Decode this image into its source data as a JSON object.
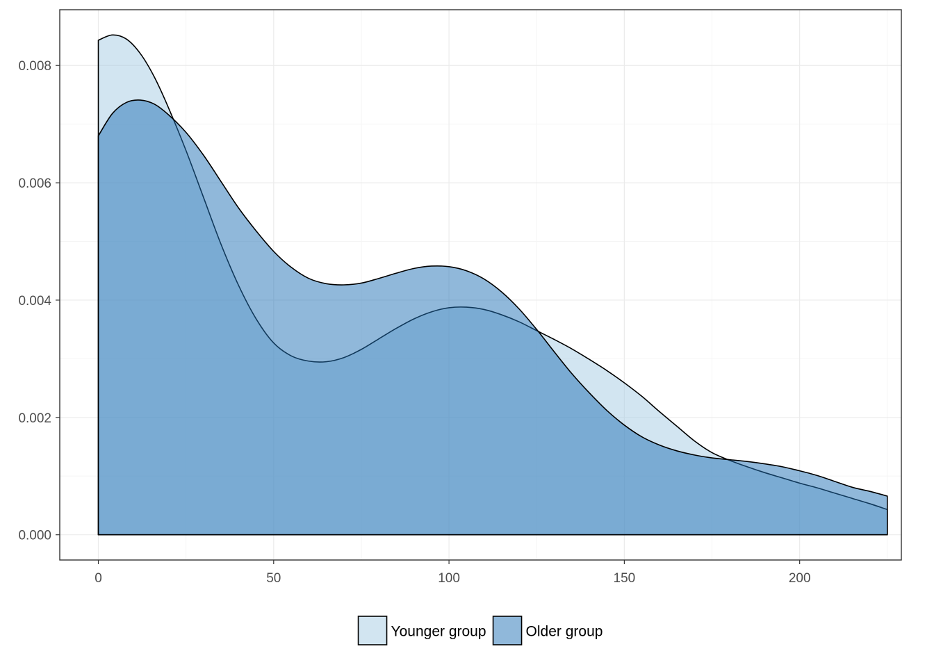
{
  "chart_data": {
    "type": "area",
    "subtype": "density",
    "title": "",
    "xlabel": "",
    "ylabel": "",
    "xlim": [
      -11,
      229
    ],
    "ylim": [
      -0.00043,
      0.00895
    ],
    "x_ticks": [
      0,
      50,
      100,
      150,
      200
    ],
    "x_tick_labels": [
      "0",
      "50",
      "100",
      "150",
      "200"
    ],
    "y_ticks": [
      0,
      0.002,
      0.004,
      0.006,
      0.008
    ],
    "y_tick_labels": [
      "0.000",
      "0.002",
      "0.004",
      "0.006",
      "0.008"
    ],
    "grid": true,
    "legend_position": "bottom",
    "series": [
      {
        "name": "Younger group",
        "fill": "#a6cce3",
        "fill_opacity": 0.5,
        "x": [
          0,
          4,
          8,
          12,
          16,
          20,
          25,
          30,
          35,
          40,
          45,
          50,
          55,
          60,
          65,
          70,
          75,
          80,
          85,
          90,
          95,
          100,
          105,
          110,
          115,
          120,
          125,
          130,
          135,
          140,
          145,
          150,
          155,
          160,
          165,
          170,
          175,
          180,
          185,
          190,
          195,
          200,
          205,
          210,
          215,
          220,
          225
        ],
        "y": [
          0.00843,
          0.00852,
          0.00845,
          0.0082,
          0.0078,
          0.00728,
          0.00655,
          0.00575,
          0.00495,
          0.00425,
          0.00368,
          0.00327,
          0.00305,
          0.00296,
          0.00295,
          0.00302,
          0.00316,
          0.00334,
          0.00352,
          0.00368,
          0.0038,
          0.00387,
          0.00388,
          0.00384,
          0.00375,
          0.00363,
          0.00348,
          0.00333,
          0.00317,
          0.00299,
          0.0028,
          0.00259,
          0.00236,
          0.0021,
          0.00185,
          0.0016,
          0.0014,
          0.00127,
          0.00116,
          0.00106,
          0.00097,
          0.00088,
          0.0008,
          0.00071,
          0.00062,
          0.00053,
          0.00043
        ]
      },
      {
        "name": "Older group",
        "fill": "#2171b5",
        "fill_opacity": 0.5,
        "x": [
          0,
          4,
          8,
          12,
          16,
          20,
          25,
          30,
          35,
          40,
          45,
          50,
          55,
          60,
          65,
          70,
          75,
          80,
          85,
          90,
          95,
          100,
          105,
          110,
          115,
          120,
          125,
          130,
          135,
          140,
          145,
          150,
          155,
          160,
          165,
          170,
          175,
          180,
          185,
          190,
          195,
          200,
          205,
          210,
          215,
          220,
          225
        ],
        "y": [
          0.0068,
          0.00718,
          0.00737,
          0.00741,
          0.00734,
          0.00716,
          0.00686,
          0.00647,
          0.00602,
          0.00557,
          0.00518,
          0.00483,
          0.00456,
          0.00437,
          0.00428,
          0.00426,
          0.00429,
          0.00437,
          0.00446,
          0.00454,
          0.00458,
          0.00457,
          0.0045,
          0.00436,
          0.00414,
          0.00385,
          0.0035,
          0.00312,
          0.00275,
          0.00242,
          0.00212,
          0.00187,
          0.00167,
          0.00153,
          0.00143,
          0.00136,
          0.00131,
          0.00128,
          0.00125,
          0.00121,
          0.00116,
          0.00109,
          0.00101,
          0.00091,
          0.00081,
          0.00074,
          0.00066
        ]
      }
    ],
    "colors": {
      "panel_border": "#333333",
      "grid_major": "#ebebeb",
      "grid_minor": "#f5f5f5",
      "curve_stroke": "#000000",
      "tick_text": "#4d4d4d",
      "tick_mark": "#333333"
    }
  }
}
